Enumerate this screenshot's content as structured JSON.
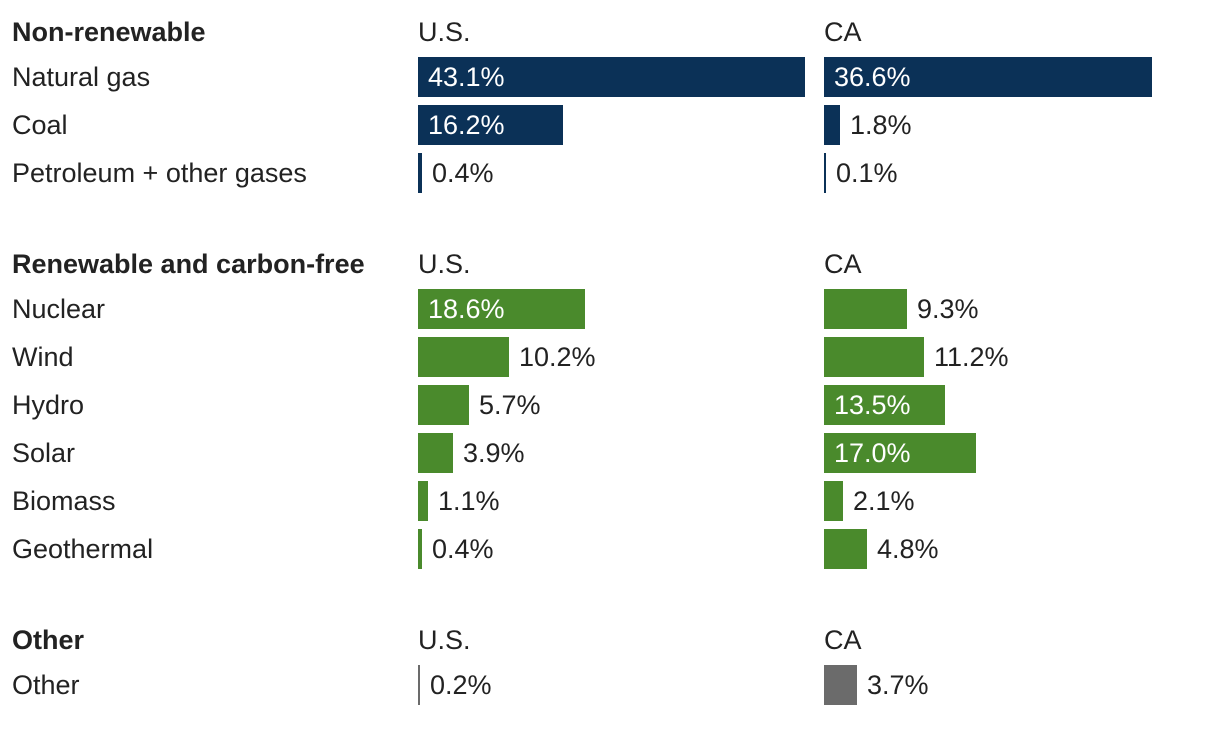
{
  "colors": {
    "Non-renewable": "#0b3157",
    "Renewable and carbon-free": "#4a8a2c",
    "Other": "#6b6b6b"
  },
  "chart_data": {
    "type": "bar",
    "columns": [
      "U.S.",
      "CA"
    ],
    "groups": [
      {
        "title": "Non-renewable",
        "rows": [
          {
            "label": "Natural gas",
            "values": [
              43.1,
              36.6
            ],
            "labels": [
              "43.1%",
              "36.6%"
            ]
          },
          {
            "label": "Coal",
            "values": [
              16.2,
              1.8
            ],
            "labels": [
              "16.2%",
              "1.8%"
            ]
          },
          {
            "label": "Petroleum + other gases",
            "values": [
              0.4,
              0.1
            ],
            "labels": [
              "0.4%",
              "0.1%"
            ]
          }
        ]
      },
      {
        "title": "Renewable and carbon-free",
        "rows": [
          {
            "label": "Nuclear",
            "values": [
              18.6,
              9.3
            ],
            "labels": [
              "18.6%",
              "9.3%"
            ]
          },
          {
            "label": "Wind",
            "values": [
              10.2,
              11.2
            ],
            "labels": [
              "10.2%",
              "11.2%"
            ]
          },
          {
            "label": "Hydro",
            "values": [
              5.7,
              13.5
            ],
            "labels": [
              "5.7%",
              "13.5%"
            ]
          },
          {
            "label": "Solar",
            "values": [
              3.9,
              17.0
            ],
            "labels": [
              "3.9%",
              "17.0%"
            ]
          },
          {
            "label": "Biomass",
            "values": [
              1.1,
              2.1
            ],
            "labels": [
              "1.1%",
              "2.1%"
            ]
          },
          {
            "label": "Geothermal",
            "values": [
              0.4,
              4.8
            ],
            "labels": [
              "0.4%",
              "4.8%"
            ]
          }
        ]
      },
      {
        "title": "Other",
        "rows": [
          {
            "label": "Other",
            "values": [
              0.2,
              3.7
            ],
            "labels": [
              "0.2%",
              "3.7%"
            ]
          }
        ]
      }
    ]
  }
}
